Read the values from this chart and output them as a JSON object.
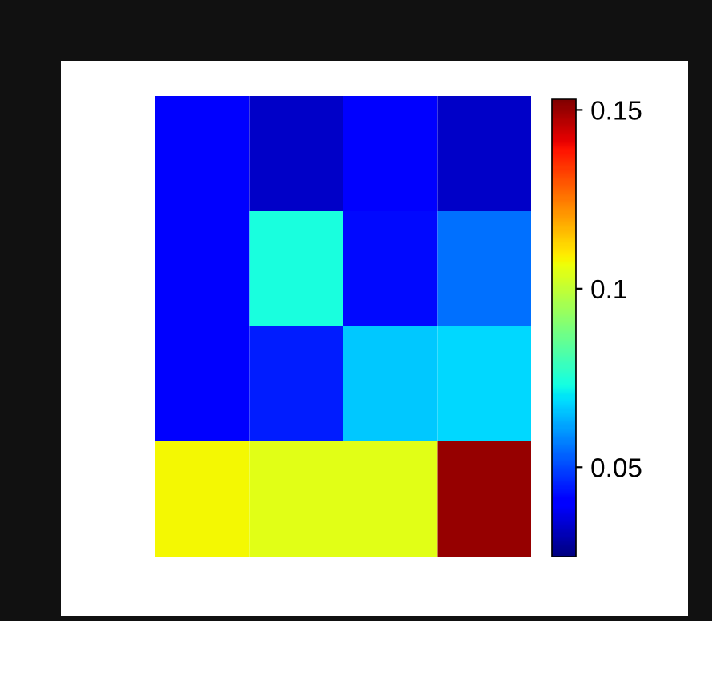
{
  "chart_data": {
    "type": "heatmap",
    "categories": [
      null,
      null,
      null,
      null
    ],
    "y_categories": [
      null,
      null,
      null,
      null
    ],
    "cells": [
      [
        0.04,
        0.033,
        0.04,
        0.033
      ],
      [
        0.04,
        0.074,
        0.042,
        0.055
      ],
      [
        0.04,
        0.045,
        0.066,
        0.068
      ],
      [
        0.108,
        0.105,
        0.105,
        0.15
      ]
    ],
    "clim": [
      0.025,
      0.153
    ],
    "cticks": [
      0.05,
      0.1,
      0.15
    ],
    "tick_labels": false
  }
}
